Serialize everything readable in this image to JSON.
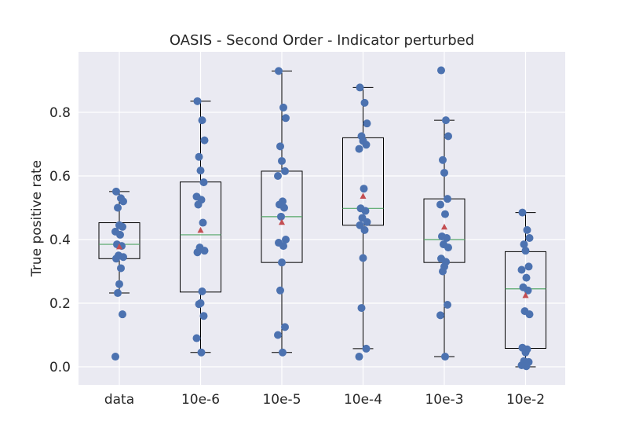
{
  "chart_data": {
    "type": "box",
    "title": "OASIS - Second Order - Indicator perturbed",
    "xlabel": "",
    "ylabel": "True positive rate",
    "categories": [
      "data",
      "10e-6",
      "10e-5",
      "10e-4",
      "10e-3",
      "10e-2"
    ],
    "yticks": [
      "0.0",
      "0.2",
      "0.4",
      "0.6",
      "0.8"
    ],
    "ylim": [
      -0.06,
      0.97
    ],
    "grid": true,
    "colors": {
      "background": "#eaeaf2",
      "grid": "#ffffff",
      "points": "#4c72b0",
      "median": "#55a868",
      "mean": "#c44e52",
      "box": "#000000"
    },
    "boxes": [
      {
        "q1": 0.34,
        "median": 0.385,
        "q3": 0.453,
        "whisker_low": 0.232,
        "whisker_high": 0.551,
        "mean": 0.378,
        "points": [
          0.551,
          0.53,
          0.52,
          0.5,
          0.445,
          0.44,
          0.425,
          0.415,
          0.385,
          0.38,
          0.35,
          0.345,
          0.34,
          0.31,
          0.26,
          0.232,
          0.165,
          0.032
        ]
      },
      {
        "q1": 0.235,
        "median": 0.415,
        "q3": 0.581,
        "whisker_low": 0.045,
        "whisker_high": 0.835,
        "mean": 0.43,
        "points": [
          0.835,
          0.775,
          0.712,
          0.66,
          0.617,
          0.58,
          0.535,
          0.525,
          0.51,
          0.453,
          0.375,
          0.365,
          0.36,
          0.237,
          0.2,
          0.197,
          0.16,
          0.09,
          0.045
        ]
      },
      {
        "q1": 0.328,
        "median": 0.472,
        "q3": 0.615,
        "whisker_low": 0.045,
        "whisker_high": 0.93,
        "mean": 0.455,
        "points": [
          0.93,
          0.815,
          0.782,
          0.693,
          0.647,
          0.615,
          0.6,
          0.52,
          0.51,
          0.5,
          0.472,
          0.4,
          0.39,
          0.38,
          0.328,
          0.24,
          0.125,
          0.1,
          0.045
        ]
      },
      {
        "q1": 0.445,
        "median": 0.498,
        "q3": 0.72,
        "whisker_low": 0.057,
        "whisker_high": 0.878,
        "mean": 0.537,
        "points": [
          0.878,
          0.83,
          0.765,
          0.725,
          0.71,
          0.698,
          0.685,
          0.56,
          0.498,
          0.49,
          0.468,
          0.455,
          0.445,
          0.43,
          0.342,
          0.185,
          0.057,
          0.032
        ]
      },
      {
        "q1": 0.328,
        "median": 0.4,
        "q3": 0.528,
        "whisker_low": 0.032,
        "whisker_high": 0.775,
        "mean": 0.44,
        "points": [
          0.932,
          0.775,
          0.725,
          0.65,
          0.61,
          0.528,
          0.51,
          0.48,
          0.41,
          0.405,
          0.385,
          0.375,
          0.34,
          0.33,
          0.315,
          0.3,
          0.195,
          0.162,
          0.032
        ]
      },
      {
        "q1": 0.058,
        "median": 0.245,
        "q3": 0.362,
        "whisker_low": 0.0,
        "whisker_high": 0.485,
        "mean": 0.225,
        "points": [
          0.485,
          0.43,
          0.405,
          0.385,
          0.365,
          0.315,
          0.305,
          0.28,
          0.25,
          0.24,
          0.175,
          0.165,
          0.06,
          0.055,
          0.045,
          0.018,
          0.015,
          0.005,
          0.002
        ]
      }
    ]
  }
}
